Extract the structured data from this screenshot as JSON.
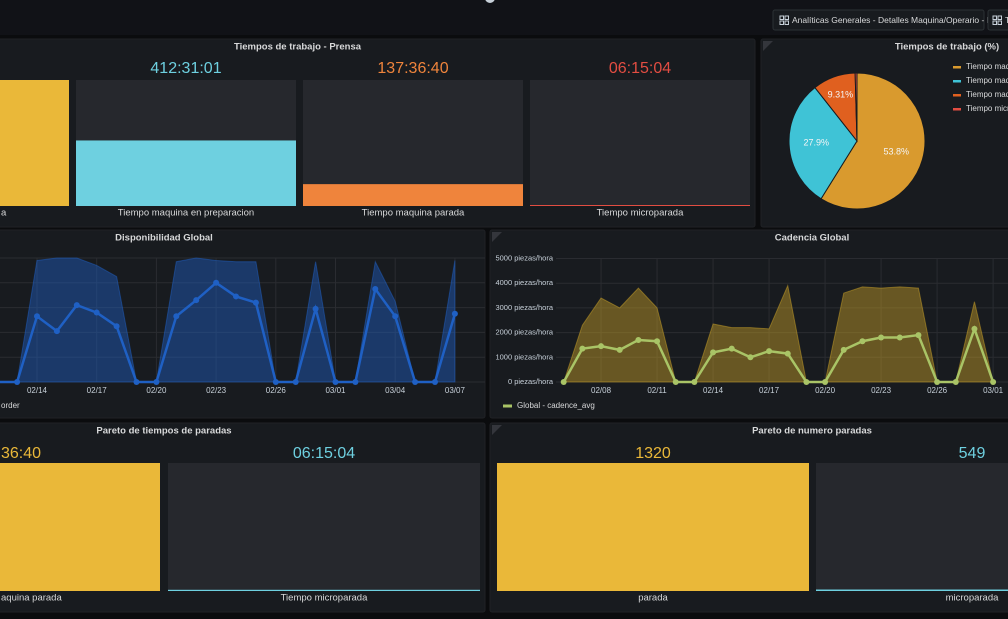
{
  "topbar": {
    "buttons": [
      "Analíticas Generales - Detalles Maquina/Operario - DEV",
      "T"
    ]
  },
  "panels": [
    {
      "title": "Tiempos de trabajo - Prensa",
      "type": "bargauge",
      "ylim": [
        0,
        793
      ],
      "gauges": [
        {
          "label": "a",
          "value": 793,
          "color": "#eab839"
        },
        {
          "label": "Tiempo maquina en preparacion",
          "value_text": "412:31:01",
          "value": 412.52,
          "color": "#6ed0e0"
        },
        {
          "label": "Tiempo maquina parada",
          "value_text": "137:36:40",
          "value": 137.61,
          "color": "#ef843c"
        },
        {
          "label": "Tiempo microparada",
          "value_text": "06:15:04",
          "value": 6.25,
          "color": "#e24d42"
        }
      ]
    },
    {
      "title": "Tiempos de trabajo (%)",
      "type": "pie",
      "series": [
        {
          "name": "Tiempo maqu",
          "color": "#d99a2e",
          "values": [
            53.8
          ],
          "value_labels": [
            "53.8%"
          ]
        },
        {
          "name": "Tiempo maqu",
          "color": "#3fc3d6",
          "values": [
            27.9
          ],
          "value_labels": [
            "27.9%"
          ]
        },
        {
          "name": "Tiempo maqu",
          "color": "#e0601f",
          "values": [
            9.31
          ],
          "value_labels": [
            "9.31%"
          ]
        },
        {
          "name": "Tiempo micro",
          "color": "#e24d42",
          "values": [
            0.4
          ],
          "value_labels": [
            null
          ]
        }
      ]
    },
    {
      "title": "Disponibilidad Global",
      "type": "line",
      "ylim": [
        0,
        100
      ],
      "ygrid": [
        0,
        20,
        40,
        60,
        80,
        100
      ],
      "x": [
        "02/12",
        "02/13",
        "02/14",
        "02/15",
        "02/16",
        "02/17",
        "02/18",
        "02/19",
        "02/20",
        "02/21",
        "02/22",
        "02/23",
        "02/24",
        "02/25",
        "02/26",
        "02/27",
        "02/28",
        "03/01",
        "03/02",
        "03/03",
        "03/04",
        "03/05",
        "03/06",
        "03/07"
      ],
      "xticks": [
        "02/14",
        "02/17",
        "02/20",
        "02/23",
        "02/26",
        "03/01",
        "03/04",
        "03/07"
      ],
      "series": [
        {
          "name": "order",
          "color": "#1f60c4",
          "values": [
            0,
            0,
            53,
            41,
            62,
            56,
            45,
            0,
            0,
            53,
            66,
            80,
            69,
            64,
            0,
            0,
            59,
            0,
            0,
            75,
            53,
            0,
            0,
            55
          ]
        }
      ],
      "band": {
        "color": "#1f60c4",
        "values": [
          0,
          0,
          98,
          100,
          100,
          94,
          85,
          0,
          0,
          97,
          100,
          98,
          97,
          97,
          0,
          0,
          97,
          0,
          0,
          97,
          65,
          0,
          0,
          98
        ]
      }
    },
    {
      "title": "Cadencia Global",
      "type": "line",
      "ylim": [
        0,
        5000
      ],
      "yticks": [
        {
          "value": 0,
          "label": "0 piezas/hora"
        },
        {
          "value": 1000,
          "label": "1000 piezas/hora"
        },
        {
          "value": 2000,
          "label": "2000 piezas/hora"
        },
        {
          "value": 3000,
          "label": "3000 piezas/hora"
        },
        {
          "value": 4000,
          "label": "4000 piezas/hora"
        },
        {
          "value": 5000,
          "label": "5000 piezas/hora"
        }
      ],
      "x": [
        "02/06",
        "02/07",
        "02/08",
        "02/09",
        "02/10",
        "02/11",
        "02/12",
        "02/13",
        "02/14",
        "02/15",
        "02/16",
        "02/17",
        "02/18",
        "02/19",
        "02/20",
        "02/21",
        "02/22",
        "02/23",
        "02/24",
        "02/25",
        "02/26",
        "02/27",
        "02/28",
        "03/01"
      ],
      "xticks": [
        "02/08",
        "02/11",
        "02/14",
        "02/17",
        "02/20",
        "02/23",
        "02/26",
        "03/01"
      ],
      "series": [
        {
          "name": "Global - cadence_avg",
          "color": "#a9c466",
          "values": [
            0,
            1350,
            1450,
            1300,
            1700,
            1650,
            0,
            0,
            1200,
            1350,
            1000,
            1250,
            1150,
            0,
            0,
            1300,
            1650,
            1800,
            1800,
            1900,
            0,
            0,
            2150,
            0
          ]
        }
      ],
      "band": {
        "color": "#c9a227",
        "values": [
          0,
          2300,
          3400,
          3000,
          3800,
          3000,
          0,
          0,
          2350,
          2200,
          2200,
          2150,
          3900,
          0,
          0,
          3600,
          3850,
          3800,
          3850,
          3800,
          0,
          0,
          3250,
          0
        ]
      }
    },
    {
      "title": "Pareto de tiempos de paradas",
      "type": "bargauge",
      "ylim": [
        5,
        137.61
      ],
      "gauges": [
        {
          "label": "aquina parada",
          "value_text": "36:40",
          "value": 137.61,
          "color": "#eab839"
        },
        {
          "label": "Tiempo microparada",
          "value_text": "06:15:04",
          "value": 6.25,
          "color": "#6ed0e0"
        }
      ]
    },
    {
      "title": "Pareto de numero paradas",
      "type": "bargauge",
      "ylim": [
        540,
        1320
      ],
      "gauges": [
        {
          "label": "parada",
          "value_text": "1320",
          "value": 1320,
          "color": "#eab839"
        },
        {
          "label": "microparada",
          "value_text": "549",
          "value": 549,
          "color": "#6ed0e0"
        }
      ]
    }
  ]
}
